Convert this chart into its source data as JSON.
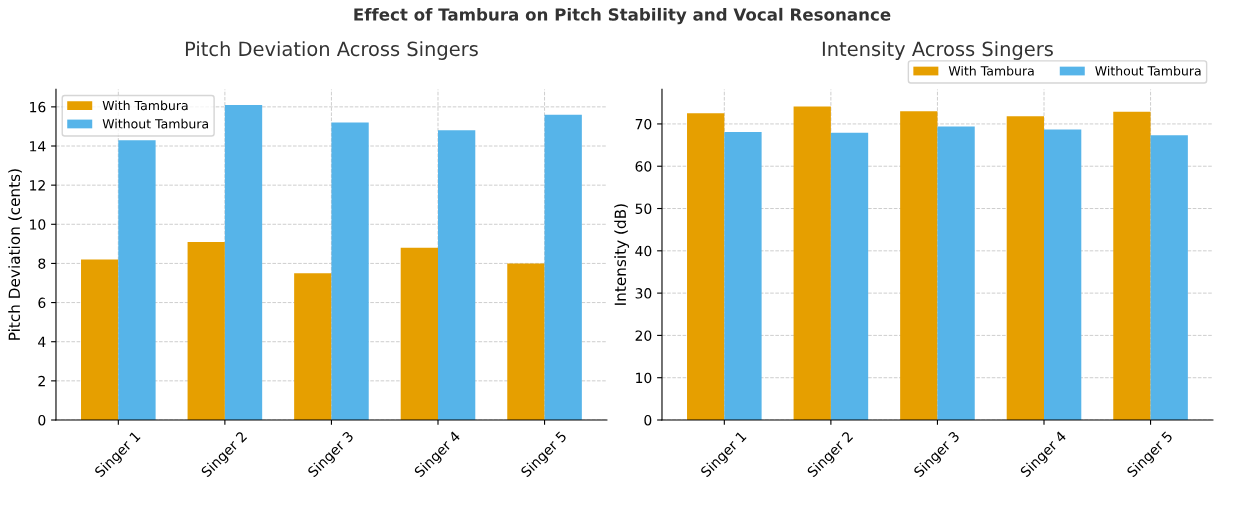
{
  "chart_data": [
    {
      "type": "bar",
      "annotations": [
        "Effect of Tambura on Pitch Stability and Vocal Resonance"
      ],
      "title": "Pitch Deviation Across Singers",
      "ylabel": "Pitch Deviation (cents)",
      "categories": [
        "Singer 1",
        "Singer 2",
        "Singer 3",
        "Singer 4",
        "Singer 5"
      ],
      "series": [
        {
          "name": "With Tambura",
          "color": "#e69f00",
          "values": [
            8.2,
            9.1,
            7.5,
            8.8,
            8.0
          ]
        },
        {
          "name": "Without Tambura",
          "color": "#56b4e9",
          "values": [
            14.3,
            16.1,
            15.2,
            14.8,
            15.6
          ]
        }
      ],
      "ylim": [
        0,
        16.9
      ],
      "yticks": [
        0,
        2,
        4,
        6,
        8,
        10,
        12,
        14,
        16
      ],
      "grid": true,
      "legend": "top left"
    },
    {
      "type": "bar",
      "title": "Intensity Across Singers",
      "ylabel": "Intensity (dB)",
      "categories": [
        "Singer 1",
        "Singer 2",
        "Singer 3",
        "Singer 4",
        "Singer 5"
      ],
      "series": [
        {
          "name": "With Tambura",
          "color": "#e69f00",
          "values": [
            72.5,
            74.1,
            73.0,
            71.8,
            72.9
          ]
        },
        {
          "name": "Without Tambura",
          "color": "#56b4e9",
          "values": [
            68.1,
            67.9,
            69.4,
            68.7,
            67.3
          ]
        }
      ],
      "ylim": [
        0,
        78.2
      ],
      "yticks": [
        0,
        10,
        20,
        30,
        40,
        50,
        60,
        70
      ],
      "grid": true,
      "legend": "top right"
    }
  ]
}
